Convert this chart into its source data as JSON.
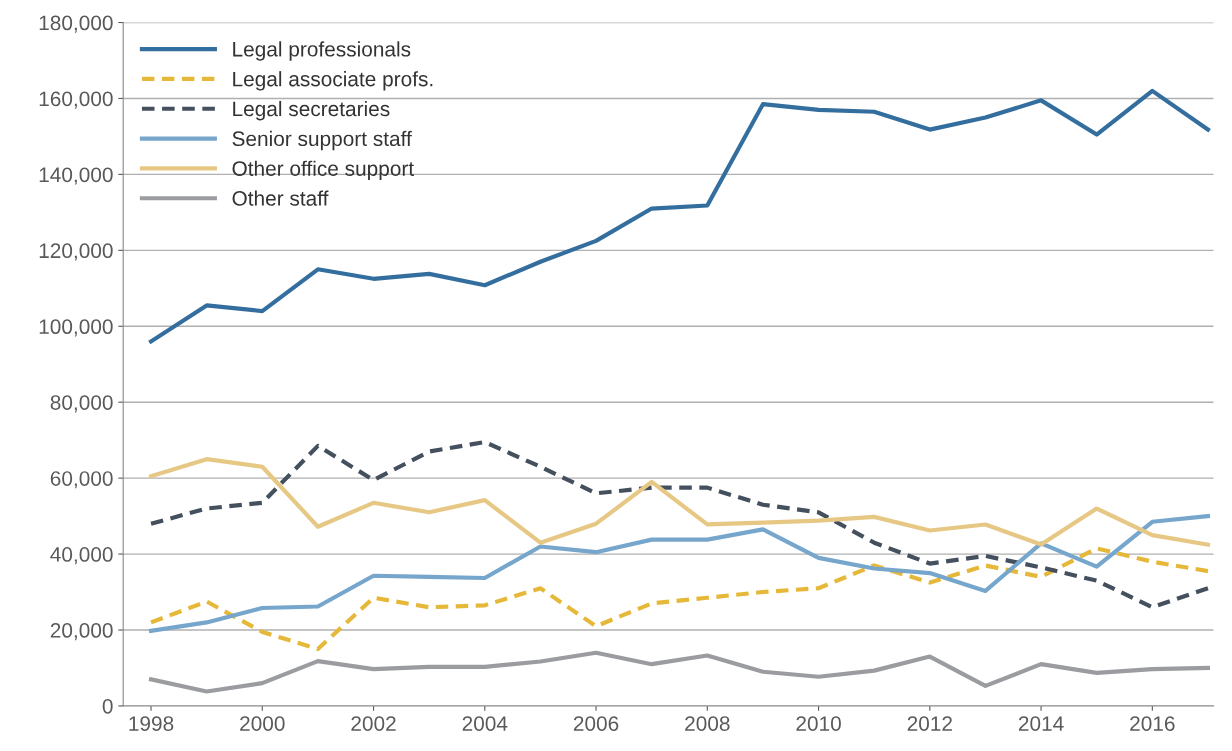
{
  "chart_data": {
    "type": "line",
    "x": [
      1998,
      1999,
      2000,
      2001,
      2002,
      2003,
      2004,
      2005,
      2006,
      2007,
      2008,
      2009,
      2010,
      2011,
      2012,
      2013,
      2014,
      2015,
      2016,
      2017
    ],
    "xlim": [
      1997.5,
      2017.1
    ],
    "xticks": [
      1998,
      2000,
      2002,
      2004,
      2006,
      2008,
      2010,
      2012,
      2014,
      2016
    ],
    "ylim": [
      0,
      180000
    ],
    "yticks": [
      {
        "value": 0,
        "label": "0"
      },
      {
        "value": 20000,
        "label": "20,000"
      },
      {
        "value": 40000,
        "label": "40,000"
      },
      {
        "value": 60000,
        "label": "60,000"
      },
      {
        "value": 80000,
        "label": "80,000"
      },
      {
        "value": 100000,
        "label": "100,000"
      },
      {
        "value": 120000,
        "label": "120,000"
      },
      {
        "value": 140000,
        "label": "140,000"
      },
      {
        "value": 160000,
        "label": "160,000"
      },
      {
        "value": 180000,
        "label": "180,000"
      }
    ],
    "grid": "y",
    "legend": "top left",
    "marker": "none",
    "series": [
      {
        "name": "Legal professionals",
        "color": "#336e9e",
        "line_style": "solid",
        "values": [
          96000,
          105500,
          104000,
          115000,
          112500,
          113800,
          110800,
          117000,
          122500,
          131000,
          131800,
          158500,
          157000,
          156500,
          151800,
          155000,
          159500,
          150500,
          162000,
          151800
        ]
      },
      {
        "name": "Legal associate profs.",
        "color": "#e6b83a",
        "line_style": "dashed",
        "values": [
          22000,
          27500,
          19500,
          15000,
          28500,
          26000,
          26500,
          31000,
          21000,
          27000,
          28500,
          30000,
          31000,
          37000,
          32500,
          37000,
          34000,
          41500,
          38000,
          35500
        ]
      },
      {
        "name": "Legal secretaries",
        "color": "#44505e",
        "line_style": "dashed",
        "values": [
          48000,
          52000,
          53500,
          68500,
          59500,
          67000,
          69500,
          63000,
          56000,
          57500,
          57500,
          53000,
          51000,
          43000,
          37500,
          39500,
          36500,
          33000,
          26000,
          31000
        ]
      },
      {
        "name": "Senior support staff",
        "color": "#77a6cc",
        "line_style": "solid",
        "values": [
          19800,
          22000,
          25800,
          26200,
          34300,
          34000,
          33700,
          42000,
          40500,
          43800,
          43800,
          46500,
          39000,
          36200,
          35000,
          30300,
          42800,
          36700,
          48500,
          50000
        ]
      },
      {
        "name": "Other office support",
        "color": "#e6c884",
        "line_style": "solid",
        "values": [
          60500,
          65000,
          63000,
          47200,
          53500,
          51000,
          54200,
          43000,
          48000,
          59000,
          47800,
          48300,
          48800,
          49800,
          46200,
          47800,
          42500,
          52000,
          45000,
          42500
        ]
      },
      {
        "name": "Other staff",
        "color": "#9a9ca0",
        "line_style": "solid",
        "values": [
          7000,
          3800,
          6000,
          11800,
          9700,
          10300,
          10300,
          11700,
          14000,
          11000,
          13300,
          9000,
          7700,
          9300,
          13000,
          5300,
          11000,
          8700,
          9700,
          10000
        ]
      }
    ]
  }
}
